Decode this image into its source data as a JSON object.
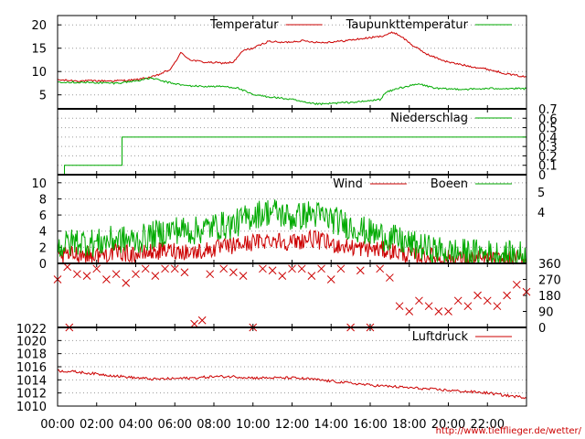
{
  "chart_data": [
    {
      "type": "line",
      "x_unit": "hours",
      "ylim": [
        2,
        22
      ],
      "yticks": [
        5,
        10,
        15,
        20
      ],
      "grid": true,
      "legend_position": "top-right",
      "series": [
        {
          "name": "Temperatur",
          "color": "#cc0000",
          "points": [
            [
              0,
              8.2
            ],
            [
              1,
              8.0
            ],
            [
              2,
              8.0
            ],
            [
              3,
              8.0
            ],
            [
              4,
              8.2
            ],
            [
              5,
              9.0
            ],
            [
              5.8,
              10.5
            ],
            [
              6.3,
              14.0
            ],
            [
              6.8,
              12.5
            ],
            [
              7.5,
              12.0
            ],
            [
              8.5,
              11.8
            ],
            [
              9.0,
              12.0
            ],
            [
              9.5,
              14.5
            ],
            [
              10.0,
              15.0
            ],
            [
              10.8,
              16.5
            ],
            [
              11.5,
              16.2
            ],
            [
              12.5,
              16.6
            ],
            [
              13.5,
              16.2
            ],
            [
              14.5,
              16.5
            ],
            [
              15.5,
              17.0
            ],
            [
              16.5,
              17.5
            ],
            [
              17.2,
              18.4
            ],
            [
              17.6,
              17.5
            ],
            [
              18.2,
              15.5
            ],
            [
              19.0,
              13.5
            ],
            [
              20.0,
              12.0
            ],
            [
              21.0,
              11.2
            ],
            [
              22.0,
              10.5
            ],
            [
              23.0,
              9.5
            ],
            [
              24.0,
              8.8
            ]
          ]
        },
        {
          "name": "Taupunkttemperatur",
          "color": "#00aa00",
          "points": [
            [
              0,
              7.8
            ],
            [
              1,
              7.7
            ],
            [
              2,
              7.6
            ],
            [
              3,
              7.5
            ],
            [
              4,
              8.0
            ],
            [
              4.8,
              8.6
            ],
            [
              5.5,
              7.8
            ],
            [
              6.5,
              7.0
            ],
            [
              7.5,
              6.8
            ],
            [
              8.5,
              6.8
            ],
            [
              9.2,
              6.5
            ],
            [
              10.0,
              5.0
            ],
            [
              11.0,
              4.5
            ],
            [
              12.0,
              4.0
            ],
            [
              12.8,
              3.2
            ],
            [
              13.5,
              3.0
            ],
            [
              14.5,
              3.3
            ],
            [
              15.5,
              3.5
            ],
            [
              16.5,
              4.0
            ],
            [
              16.8,
              5.5
            ],
            [
              17.5,
              6.5
            ],
            [
              18.5,
              7.3
            ],
            [
              19.5,
              6.3
            ],
            [
              21.0,
              6.2
            ],
            [
              22.5,
              6.4
            ],
            [
              24.0,
              6.3
            ]
          ]
        }
      ]
    },
    {
      "type": "line",
      "x_unit": "hours",
      "ylim": [
        0,
        0.7
      ],
      "yticks": [
        0,
        0.1,
        0.2,
        0.3,
        0.4,
        0.5,
        0.6,
        0.7
      ],
      "ytick_side": "right",
      "grid": true,
      "legend_position": "top-right",
      "series": [
        {
          "name": "Niederschlag",
          "color": "#00aa00",
          "points": [
            [
              0.25,
              0.0
            ],
            [
              0.35,
              0.0
            ],
            [
              0.35,
              0.1
            ],
            [
              3.3,
              0.1
            ],
            [
              3.3,
              0.4
            ],
            [
              24.0,
              0.4
            ]
          ]
        }
      ]
    },
    {
      "type": "line",
      "x_unit": "hours",
      "ylim": [
        0,
        11
      ],
      "yticks": [
        0,
        2,
        4,
        6,
        8,
        10
      ],
      "right_labels": [
        "5",
        "4"
      ],
      "grid": true,
      "legend_position": "top-right",
      "series": [
        {
          "name": "Wind",
          "color": "#cc0000",
          "points": [
            [
              0,
              0.8
            ],
            [
              1,
              1.2
            ],
            [
              2,
              1.0
            ],
            [
              3,
              1.4
            ],
            [
              4,
              1.1
            ],
            [
              5,
              1.5
            ],
            [
              6,
              1.6
            ],
            [
              7,
              1.4
            ],
            [
              8,
              1.8
            ],
            [
              9,
              2.2
            ],
            [
              10,
              2.6
            ],
            [
              11,
              3.0
            ],
            [
              12,
              2.6
            ],
            [
              13,
              3.1
            ],
            [
              14,
              2.4
            ],
            [
              15,
              2.0
            ],
            [
              16,
              1.8
            ],
            [
              17,
              1.6
            ],
            [
              18,
              1.0
            ],
            [
              19,
              0.9
            ],
            [
              20,
              0.6
            ],
            [
              21,
              0.5
            ],
            [
              22,
              0.5
            ],
            [
              23,
              0.4
            ],
            [
              24,
              0.5
            ]
          ]
        },
        {
          "name": "Boeen",
          "color": "#00aa00",
          "points": [
            [
              0,
              2.0
            ],
            [
              1,
              2.8
            ],
            [
              2,
              2.5
            ],
            [
              3,
              3.0
            ],
            [
              4,
              2.8
            ],
            [
              5,
              3.6
            ],
            [
              6,
              4.2
            ],
            [
              7,
              4.0
            ],
            [
              8,
              4.6
            ],
            [
              9,
              4.8
            ],
            [
              10,
              6.0
            ],
            [
              11,
              6.5
            ],
            [
              12,
              5.6
            ],
            [
              13,
              6.2
            ],
            [
              14,
              5.5
            ],
            [
              15,
              4.6
            ],
            [
              16,
              3.8
            ],
            [
              17,
              3.2
            ],
            [
              18,
              2.4
            ],
            [
              19,
              1.8
            ],
            [
              20,
              1.4
            ],
            [
              21,
              1.3
            ],
            [
              22,
              1.2
            ],
            [
              23,
              1.0
            ],
            [
              24,
              1.1
            ]
          ]
        }
      ]
    },
    {
      "type": "scatter",
      "x_unit": "hours",
      "ylim": [
        0,
        360
      ],
      "yticks": [
        0,
        90,
        180,
        270,
        360
      ],
      "ytick_side": "right",
      "marker": "x",
      "color": "#cc0000",
      "series": [
        {
          "name": "",
          "points": [
            [
              0.0,
              270
            ],
            [
              0.5,
              340
            ],
            [
              0.6,
              0
            ],
            [
              1.0,
              300
            ],
            [
              1.5,
              290
            ],
            [
              2.0,
              330
            ],
            [
              2.5,
              270
            ],
            [
              3.0,
              300
            ],
            [
              3.5,
              250
            ],
            [
              4.0,
              300
            ],
            [
              4.5,
              330
            ],
            [
              5.0,
              290
            ],
            [
              5.5,
              330
            ],
            [
              6.0,
              330
            ],
            [
              6.5,
              310
            ],
            [
              7.0,
              20
            ],
            [
              7.4,
              40
            ],
            [
              7.8,
              300
            ],
            [
              8.5,
              330
            ],
            [
              9.0,
              310
            ],
            [
              9.5,
              290
            ],
            [
              10.0,
              0
            ],
            [
              10.5,
              330
            ],
            [
              11.0,
              320
            ],
            [
              11.5,
              290
            ],
            [
              12.0,
              330
            ],
            [
              12.5,
              330
            ],
            [
              13.0,
              290
            ],
            [
              13.5,
              330
            ],
            [
              14.0,
              270
            ],
            [
              14.5,
              330
            ],
            [
              15.0,
              0
            ],
            [
              15.5,
              320
            ],
            [
              16.0,
              0
            ],
            [
              16.5,
              330
            ],
            [
              17.0,
              280
            ],
            [
              17.5,
              120
            ],
            [
              18.0,
              90
            ],
            [
              18.5,
              150
            ],
            [
              19.0,
              120
            ],
            [
              19.5,
              90
            ],
            [
              20.0,
              90
            ],
            [
              20.5,
              150
            ],
            [
              21.0,
              120
            ],
            [
              21.5,
              180
            ],
            [
              22.0,
              150
            ],
            [
              22.5,
              120
            ],
            [
              23.0,
              180
            ],
            [
              23.5,
              240
            ],
            [
              24.0,
              200
            ]
          ]
        }
      ]
    },
    {
      "type": "line",
      "x_unit": "hours",
      "ylim": [
        1010,
        1022
      ],
      "yticks": [
        1010,
        1012,
        1014,
        1016,
        1018,
        1020
      ],
      "top_label": "1022",
      "grid": true,
      "legend_position": "top-right",
      "series": [
        {
          "name": "Luftdruck",
          "color": "#cc0000",
          "points": [
            [
              0,
              1015.4
            ],
            [
              1,
              1015.2
            ],
            [
              2,
              1014.9
            ],
            [
              3,
              1014.6
            ],
            [
              4,
              1014.3
            ],
            [
              5,
              1014.1
            ],
            [
              6,
              1014.2
            ],
            [
              7,
              1014.3
            ],
            [
              8,
              1014.5
            ],
            [
              9,
              1014.5
            ],
            [
              10,
              1014.3
            ],
            [
              11,
              1014.3
            ],
            [
              12,
              1014.3
            ],
            [
              13,
              1014.1
            ],
            [
              14,
              1013.8
            ],
            [
              15,
              1013.5
            ],
            [
              16,
              1013.2
            ],
            [
              17,
              1013.0
            ],
            [
              18,
              1012.8
            ],
            [
              19,
              1012.6
            ],
            [
              20,
              1012.4
            ],
            [
              21,
              1012.2
            ],
            [
              22,
              1012.0
            ],
            [
              23,
              1011.6
            ],
            [
              24,
              1011.3
            ]
          ]
        }
      ]
    }
  ],
  "xaxis": {
    "range": [
      0,
      24
    ],
    "ticks": [
      0,
      2,
      4,
      6,
      8,
      10,
      12,
      14,
      16,
      18,
      20,
      22
    ],
    "tick_labels": [
      "00:00",
      "02:00",
      "04:00",
      "06:00",
      "08:00",
      "10:00",
      "12:00",
      "14:00",
      "16:00",
      "18:00",
      "20:00",
      "22:00"
    ]
  },
  "credit": "http://www.tiefflieger.de/wetter/"
}
